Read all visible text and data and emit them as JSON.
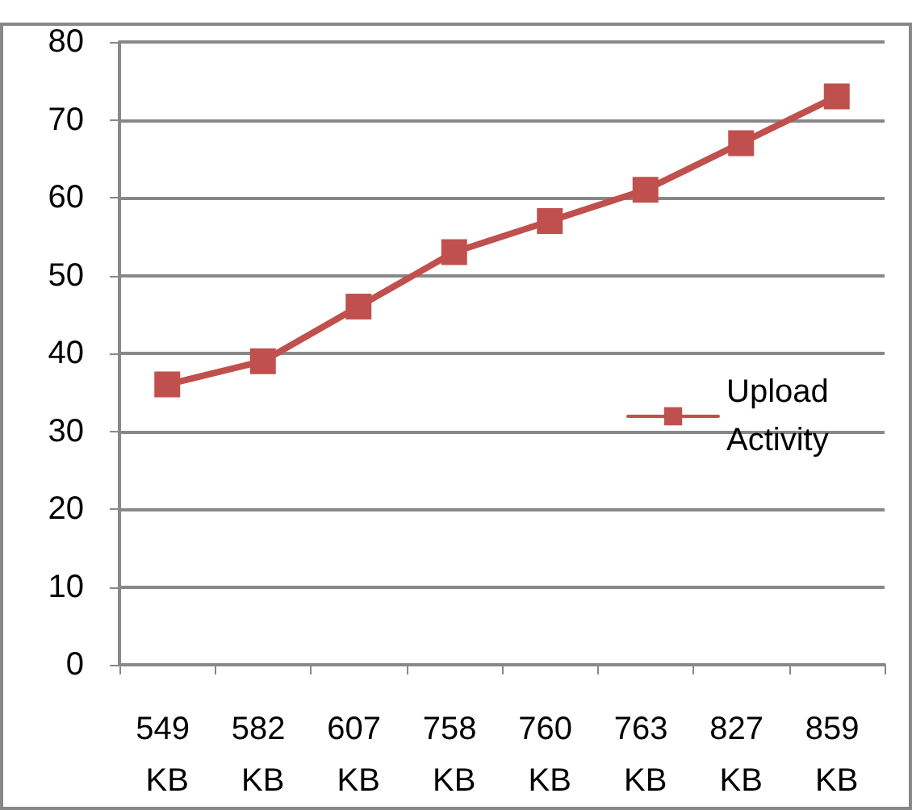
{
  "chart_data": {
    "type": "line",
    "categories": [
      "549 KB",
      "582 KB",
      "607 KB",
      "758 KB",
      "760 KB",
      "763 KB",
      "827 KB",
      "859 KB"
    ],
    "series": [
      {
        "name": "Upload Activity",
        "color": "#c0504d",
        "values": [
          36,
          39,
          46,
          53,
          57,
          61,
          67,
          73
        ]
      }
    ],
    "ylim": [
      0,
      80
    ],
    "yticks": [
      0,
      10,
      20,
      30,
      40,
      50,
      60,
      70,
      80
    ],
    "grid": "y",
    "legend": "right",
    "marker": "square",
    "line_style": "solid"
  }
}
